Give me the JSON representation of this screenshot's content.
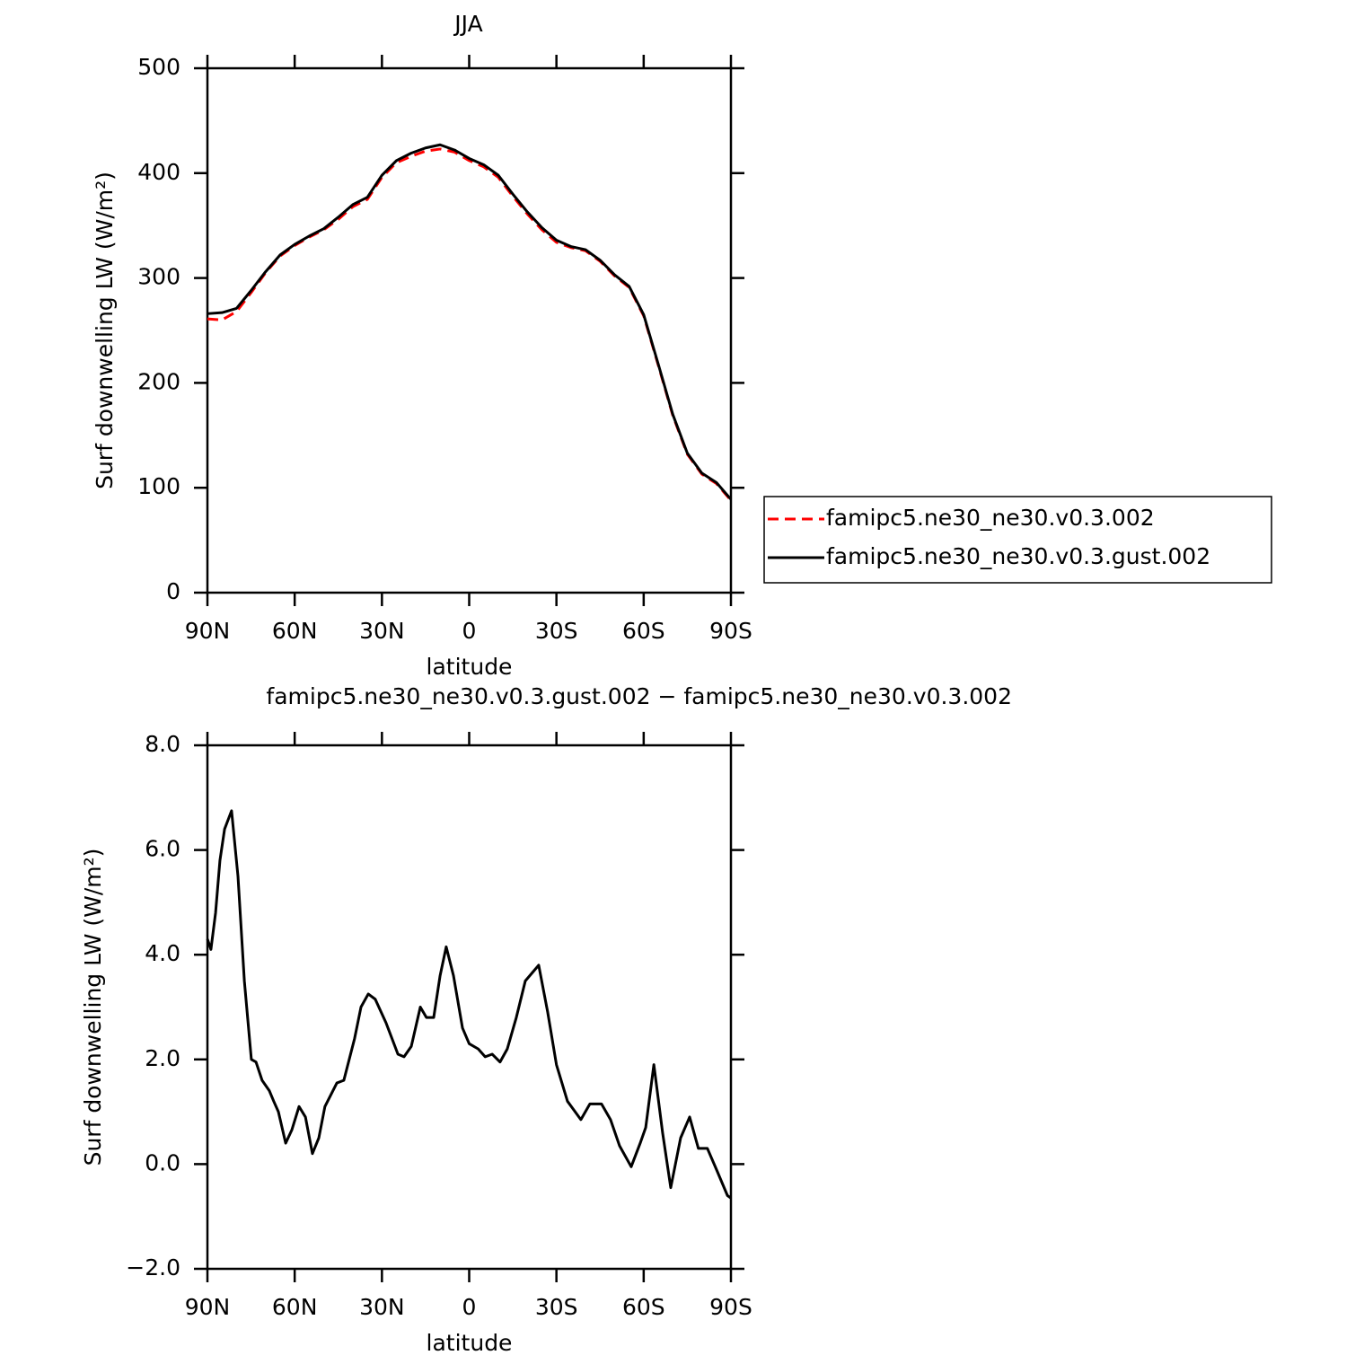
{
  "chart_data": [
    {
      "type": "line",
      "title": "JJA",
      "x_label": "latitude",
      "y_label": "Surf downwelling LW (W/m²)",
      "x": [
        90,
        85,
        80,
        75,
        70,
        65,
        60,
        55,
        50,
        45,
        40,
        35,
        30,
        25,
        20,
        15,
        10,
        5,
        0,
        -5,
        -10,
        -15,
        -20,
        -25,
        -30,
        -35,
        -40,
        -45,
        -50,
        -55,
        -60,
        -65,
        -70,
        -75,
        -80,
        -85,
        -90
      ],
      "series": [
        {
          "name": "famipc5.ne30_ne30.v0.3.002",
          "color": "#ff0000",
          "dashed": true,
          "values": [
            261,
            260,
            268,
            286,
            305,
            321,
            331,
            339,
            346,
            356,
            368,
            375,
            396,
            410,
            416,
            421,
            423,
            420,
            412,
            406,
            396,
            378,
            361,
            346,
            334,
            329,
            326,
            316,
            302,
            291,
            264,
            217,
            169,
            132,
            113,
            104,
            88
          ]
        },
        {
          "name": "famipc5.ne30_ne30.v0.3.gust.002",
          "color": "#000000",
          "dashed": false,
          "values": [
            266,
            267,
            271,
            288,
            306,
            322,
            332,
            340,
            347,
            358,
            370,
            377,
            398,
            412,
            419,
            424,
            427,
            422,
            414,
            408,
            398,
            380,
            363,
            348,
            336,
            330,
            327,
            317,
            303,
            292,
            265,
            218,
            170,
            133,
            114,
            105,
            89
          ]
        }
      ],
      "xlim": [
        90,
        -90
      ],
      "ylim": [
        0,
        500
      ],
      "xticks": [
        {
          "value": 90,
          "label": "90N"
        },
        {
          "value": 60,
          "label": "60N"
        },
        {
          "value": 30,
          "label": "30N"
        },
        0,
        {
          "value": -30,
          "label": "30S"
        },
        {
          "value": -60,
          "label": "60S"
        },
        {
          "value": -90,
          "label": "90S"
        }
      ],
      "yticks": [
        0,
        100,
        200,
        300,
        400,
        500
      ],
      "legend": "right"
    },
    {
      "type": "line",
      "title": "famipc5.ne30_ne30.v0.3.gust.002 − famipc5.ne30_ne30.v0.3.002",
      "x_label": "latitude",
      "y_label": "Surf downwelling LW (W/m²)",
      "x": [
        90,
        88.8,
        87.2,
        85.7,
        84.1,
        81.7,
        79.5,
        77.3,
        74.9,
        73.3,
        71.2,
        68.7,
        67.2,
        65.6,
        63.1,
        61,
        58.5,
        56.3,
        53.9,
        51.7,
        49.6,
        45.5,
        43.1,
        39.4,
        37.2,
        34.7,
        32.3,
        28.6,
        24.5,
        22.4,
        19.9,
        16.8,
        14.7,
        12.2,
        10,
        7.9,
        5.4,
        2.3,
        0,
        -3.1,
        -5.5,
        -7.9,
        -10.6,
        -13.1,
        -16.2,
        -19.3,
        -23.9,
        -27,
        -30,
        -33.8,
        -38.4,
        -41.5,
        -45.5,
        -48.6,
        -51.7,
        -55.7,
        -58.8,
        -60.7,
        -63.5,
        -66.5,
        -69.3,
        -72.7,
        -75.8,
        -78.8,
        -81.9,
        -85,
        -88.8,
        -90
      ],
      "series": [
        {
          "color": "#000000",
          "values": [
            4.3,
            4.1,
            4.8,
            5.8,
            6.4,
            6.75,
            5.5,
            3.5,
            2.0,
            1.95,
            1.6,
            1.4,
            1.2,
            1.0,
            0.4,
            0.65,
            1.1,
            0.9,
            0.2,
            0.5,
            1.1,
            1.55,
            1.6,
            2.4,
            3.0,
            3.25,
            3.15,
            2.7,
            2.1,
            2.05,
            2.25,
            3.0,
            2.8,
            2.8,
            3.6,
            4.15,
            3.6,
            2.6,
            2.3,
            2.2,
            2.05,
            2.1,
            1.95,
            2.2,
            2.8,
            3.5,
            3.8,
            2.9,
            1.9,
            1.2,
            0.85,
            1.15,
            1.15,
            0.85,
            0.35,
            -0.05,
            0.4,
            0.7,
            1.9,
            0.6,
            -0.45,
            0.5,
            0.9,
            0.3,
            0.3,
            -0.1,
            -0.6,
            -0.65
          ]
        }
      ],
      "xlim": [
        90,
        -90
      ],
      "ylim": [
        -2,
        8
      ],
      "xticks": [
        {
          "value": 90,
          "label": "90N"
        },
        {
          "value": 60,
          "label": "60N"
        },
        {
          "value": 30,
          "label": "30N"
        },
        0,
        {
          "value": -30,
          "label": "30S"
        },
        {
          "value": -60,
          "label": "60S"
        },
        {
          "value": -90,
          "label": "90S"
        }
      ],
      "yticks": [
        {
          "value": -2,
          "label": "−2.0"
        },
        {
          "value": 0,
          "label": "0.0"
        },
        {
          "value": 2,
          "label": "2.0"
        },
        {
          "value": 4,
          "label": "4.0"
        },
        {
          "value": 6,
          "label": "6.0"
        },
        {
          "value": 8,
          "label": "8.0"
        }
      ]
    }
  ]
}
